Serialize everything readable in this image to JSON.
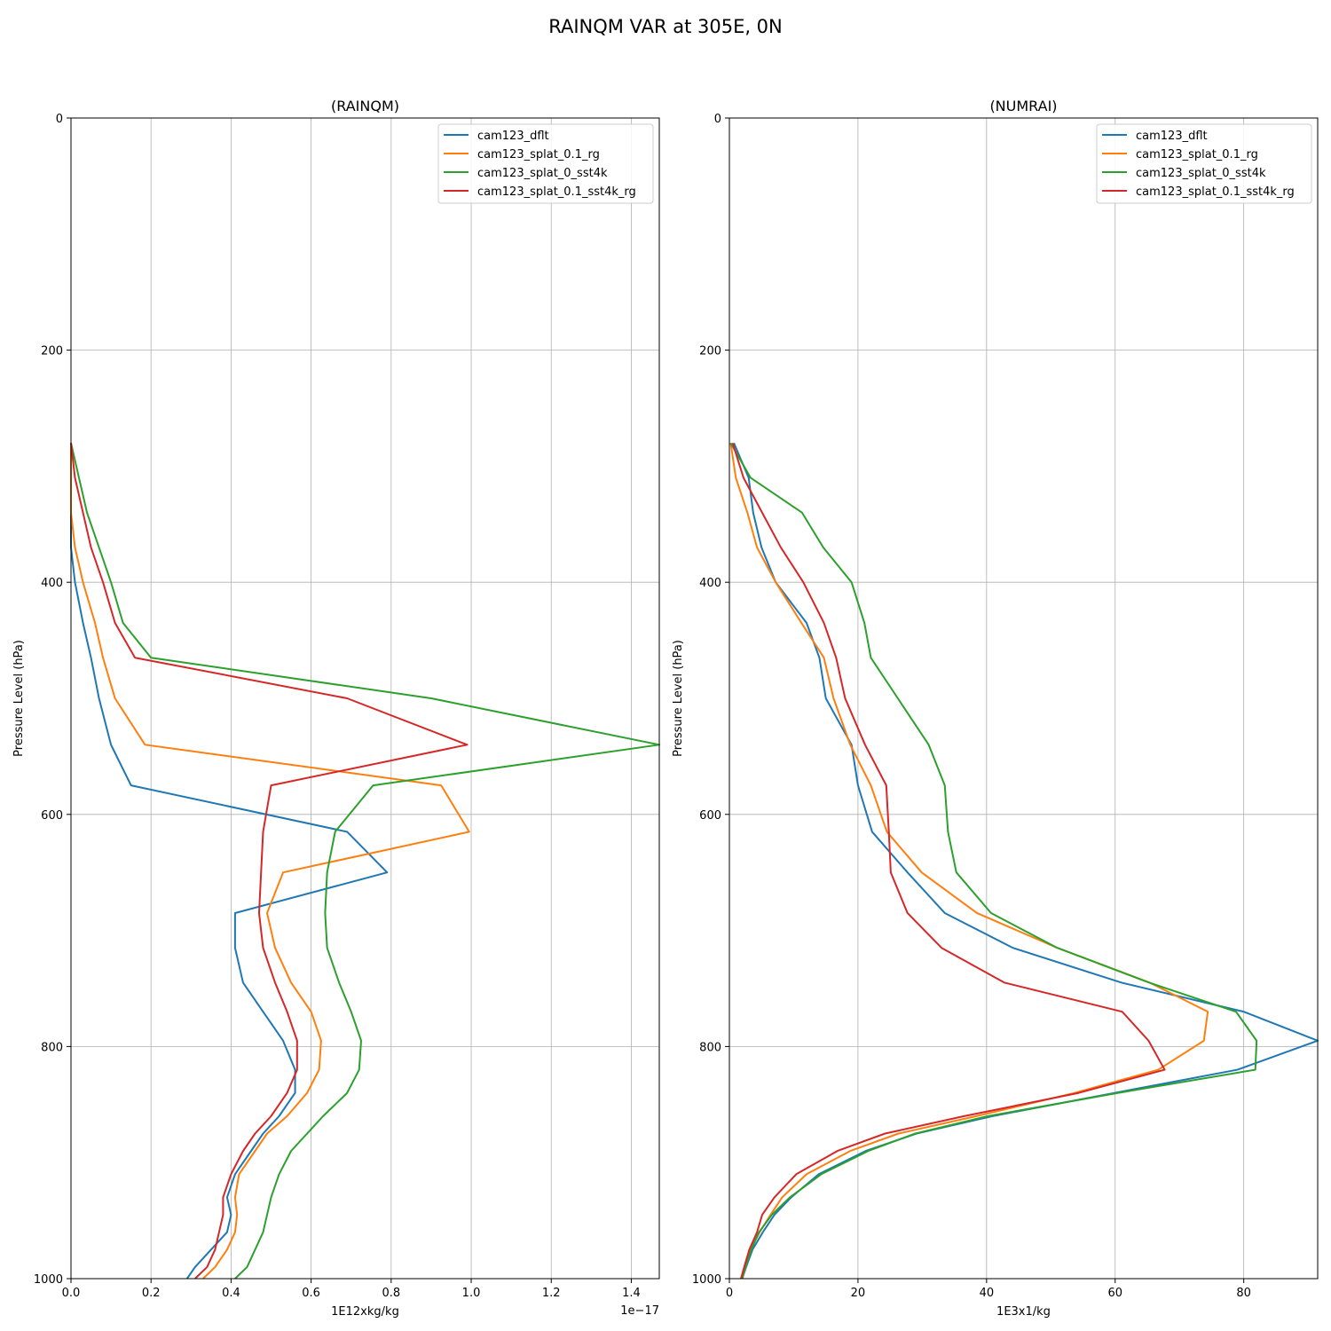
{
  "figure_title": "RAINQM VAR at 305E, 0N",
  "chart_data": [
    {
      "type": "line",
      "title": "(RAINQM)",
      "xlabel": "1E12xkg/kg",
      "ylabel": "Pressure Level (hPa)",
      "offset_text": "1e−17",
      "xlim": [
        0,
        1.47
      ],
      "ylim": [
        1000,
        0
      ],
      "xticks": [
        "0.0",
        "0.2",
        "0.4",
        "0.6",
        "0.8",
        "1.0",
        "1.2",
        "1.4"
      ],
      "yticks": [
        "0",
        "200",
        "400",
        "600",
        "800",
        "1000"
      ],
      "grid": true,
      "legend_position": "top-right",
      "y": [
        1000,
        990,
        975,
        960,
        945,
        930,
        910,
        890,
        875,
        860,
        840,
        820,
        795,
        770,
        745,
        715,
        685,
        650,
        615,
        575,
        540,
        500,
        465,
        435,
        400,
        370,
        340,
        310,
        280
      ],
      "series": [
        {
          "name": "cam123_dflt",
          "color": "#1f77b4",
          "values": [
            0.29,
            0.31,
            0.35,
            0.39,
            0.4,
            0.39,
            0.41,
            0.45,
            0.48,
            0.52,
            0.56,
            0.56,
            0.53,
            0.48,
            0.43,
            0.41,
            0.41,
            0.79,
            0.69,
            0.15,
            0.1,
            0.07,
            0.05,
            0.03,
            0.01,
            0.0,
            0.0,
            0.0,
            0.0
          ]
        },
        {
          "name": "cam123_splat_0.1_rg",
          "color": "#ff7f0e",
          "values": [
            0.33,
            0.36,
            0.39,
            0.41,
            0.415,
            0.41,
            0.42,
            0.46,
            0.49,
            0.54,
            0.59,
            0.62,
            0.625,
            0.6,
            0.55,
            0.51,
            0.49,
            0.53,
            0.995,
            0.925,
            0.185,
            0.11,
            0.08,
            0.06,
            0.03,
            0.01,
            0.0,
            0.0,
            0.0
          ]
        },
        {
          "name": "cam123_splat_0_sst4k",
          "color": "#2ca02c",
          "values": [
            0.41,
            0.44,
            0.46,
            0.48,
            0.49,
            0.5,
            0.52,
            0.55,
            0.59,
            0.63,
            0.69,
            0.72,
            0.725,
            0.7,
            0.67,
            0.64,
            0.635,
            0.64,
            0.66,
            0.755,
            1.47,
            0.9,
            0.2,
            0.13,
            0.1,
            0.07,
            0.04,
            0.02,
            0.0
          ]
        },
        {
          "name": "cam123_splat_0.1_sst4k_rg",
          "color": "#d62728",
          "values": [
            0.31,
            0.34,
            0.36,
            0.37,
            0.38,
            0.38,
            0.4,
            0.43,
            0.46,
            0.5,
            0.54,
            0.565,
            0.565,
            0.54,
            0.51,
            0.48,
            0.47,
            0.475,
            0.48,
            0.5,
            0.99,
            0.69,
            0.16,
            0.11,
            0.08,
            0.05,
            0.03,
            0.01,
            0.0
          ]
        }
      ]
    },
    {
      "type": "line",
      "title": "(NUMRAI)",
      "xlabel": "1E3x1/kg",
      "ylabel": "Pressure Level (hPa)",
      "xlim": [
        0,
        91.5
      ],
      "ylim": [
        1000,
        0
      ],
      "xticks": [
        "0",
        "20",
        "40",
        "60",
        "80"
      ],
      "yticks": [
        "0",
        "200",
        "400",
        "600",
        "800",
        "1000"
      ],
      "grid": true,
      "legend_position": "top-right",
      "y": [
        1000,
        990,
        975,
        960,
        945,
        930,
        910,
        890,
        875,
        860,
        840,
        820,
        795,
        770,
        745,
        715,
        685,
        650,
        615,
        575,
        540,
        500,
        465,
        435,
        400,
        370,
        340,
        310,
        280
      ],
      "series": [
        {
          "name": "cam123_dflt",
          "color": "#1f77b4",
          "values": [
            2.0,
            2.6,
            3.6,
            5.2,
            7.0,
            9.6,
            13.9,
            21.2,
            29.1,
            40.9,
            59.9,
            79.0,
            91.5,
            80.0,
            61.0,
            44.1,
            33.5,
            27.7,
            22.2,
            20.0,
            19.0,
            15.0,
            14.0,
            12.0,
            7.2,
            5.0,
            3.7,
            3.0,
            0.7
          ]
        },
        {
          "name": "cam123_splat_0.1_rg",
          "color": "#ff7f0e",
          "values": [
            2.0,
            2.5,
            3.3,
            4.7,
            6.4,
            8.2,
            12.0,
            18.8,
            26.3,
            38.4,
            53.7,
            66.7,
            73.8,
            74.4,
            65.4,
            51.0,
            38.5,
            29.9,
            24.5,
            22.0,
            18.8,
            16.2,
            14.7,
            11.2,
            7.2,
            4.3,
            2.8,
            1.0,
            0.2
          ]
        },
        {
          "name": "cam123_splat_0_sst4k",
          "color": "#2ca02c",
          "values": [
            2.0,
            2.5,
            3.4,
            4.6,
            6.6,
            9.4,
            14.3,
            21.6,
            28.9,
            40.2,
            60.4,
            81.8,
            82.0,
            78.8,
            65.3,
            51.0,
            40.7,
            35.3,
            34.0,
            33.5,
            31.0,
            26.2,
            22.0,
            21.0,
            19.0,
            14.6,
            11.3,
            3.3,
            0.2
          ]
        },
        {
          "name": "cam123_splat_0.1_sst4k_rg",
          "color": "#d62728",
          "values": [
            1.8,
            2.3,
            3.1,
            4.3,
            5.1,
            7.0,
            10.4,
            16.8,
            24.2,
            36.5,
            54.3,
            67.7,
            65.2,
            61.1,
            42.8,
            33.0,
            27.7,
            25.1,
            24.8,
            24.4,
            21.1,
            18.0,
            16.6,
            14.7,
            11.5,
            8.0,
            5.1,
            2.2,
            0.5
          ]
        }
      ]
    }
  ]
}
